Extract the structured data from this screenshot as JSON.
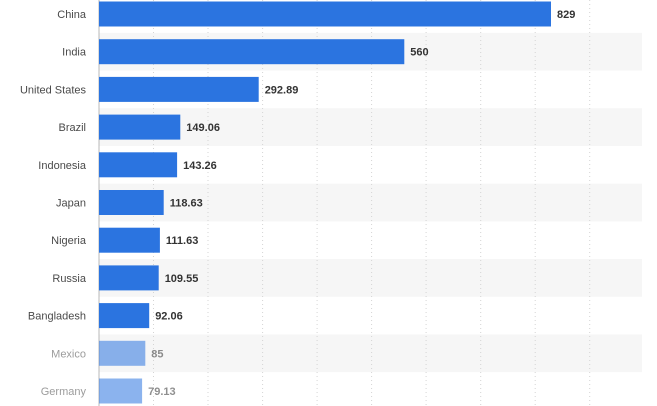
{
  "chart_data": {
    "type": "bar",
    "orientation": "horizontal",
    "categories": [
      "China",
      "India",
      "United States",
      "Brazil",
      "Indonesia",
      "Japan",
      "Nigeria",
      "Russia",
      "Bangladesh",
      "Mexico",
      "Germany"
    ],
    "values": [
      829,
      560,
      292.89,
      149.06,
      143.26,
      118.63,
      111.63,
      109.55,
      92.06,
      85,
      79.13
    ],
    "value_labels": [
      "829",
      "560",
      "292.89",
      "149.06",
      "143.26",
      "118.63",
      "111.63",
      "109.55",
      "92.06",
      "85",
      "79.13"
    ],
    "xlim": [
      0,
      1000
    ],
    "grid": true,
    "bar_color": "#2b74e0",
    "title": "",
    "xlabel": "",
    "ylabel": ""
  }
}
